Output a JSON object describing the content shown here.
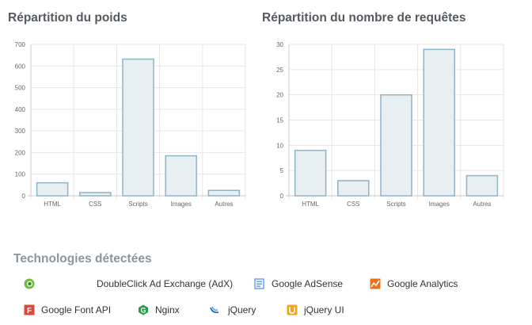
{
  "charts": {
    "weight_title": "Répartition du poids",
    "requests_title": "Répartition du nombre de requêtes"
  },
  "chart_data": [
    {
      "type": "bar",
      "title": "Répartition du poids",
      "categories": [
        "HTML",
        "CSS",
        "Scripts",
        "Images",
        "Autres"
      ],
      "values": [
        60,
        15,
        632,
        185,
        25
      ],
      "yticks": [
        "0",
        "100",
        "200",
        "300",
        "400",
        "500",
        "600",
        "700"
      ],
      "ylim": [
        0,
        700
      ],
      "grid": true
    },
    {
      "type": "bar",
      "title": "Répartition du nombre de requêtes",
      "categories": [
        "HTML",
        "CSS",
        "Scripts",
        "Images",
        "Autres"
      ],
      "values": [
        9,
        3,
        20,
        29,
        4
      ],
      "yticks": [
        "0",
        "5",
        "10",
        "15",
        "20",
        "25",
        "30"
      ],
      "ylim": [
        0,
        30
      ],
      "grid": true
    }
  ],
  "technologies": {
    "title": "Technologies détectées",
    "items": [
      {
        "label": "DoubleClick Ad Exchange (AdX)",
        "icon": "doubleclick-icon",
        "color": "#6cbf3d"
      },
      {
        "label": "Google AdSense",
        "icon": "adsense-icon",
        "color": "#4a8fd4"
      },
      {
        "label": "Google Analytics",
        "icon": "analytics-icon",
        "color": "#e8711a"
      },
      {
        "label": "Google Font API",
        "icon": "font-api-icon",
        "color": "#d84a3a"
      },
      {
        "label": "Nginx",
        "icon": "nginx-icon",
        "color": "#2e9b4a"
      },
      {
        "label": "jQuery",
        "icon": "jquery-icon",
        "color": "#1f6fb5"
      },
      {
        "label": "jQuery UI",
        "icon": "jquery-ui-icon",
        "color": "#f3a31b"
      }
    ]
  }
}
